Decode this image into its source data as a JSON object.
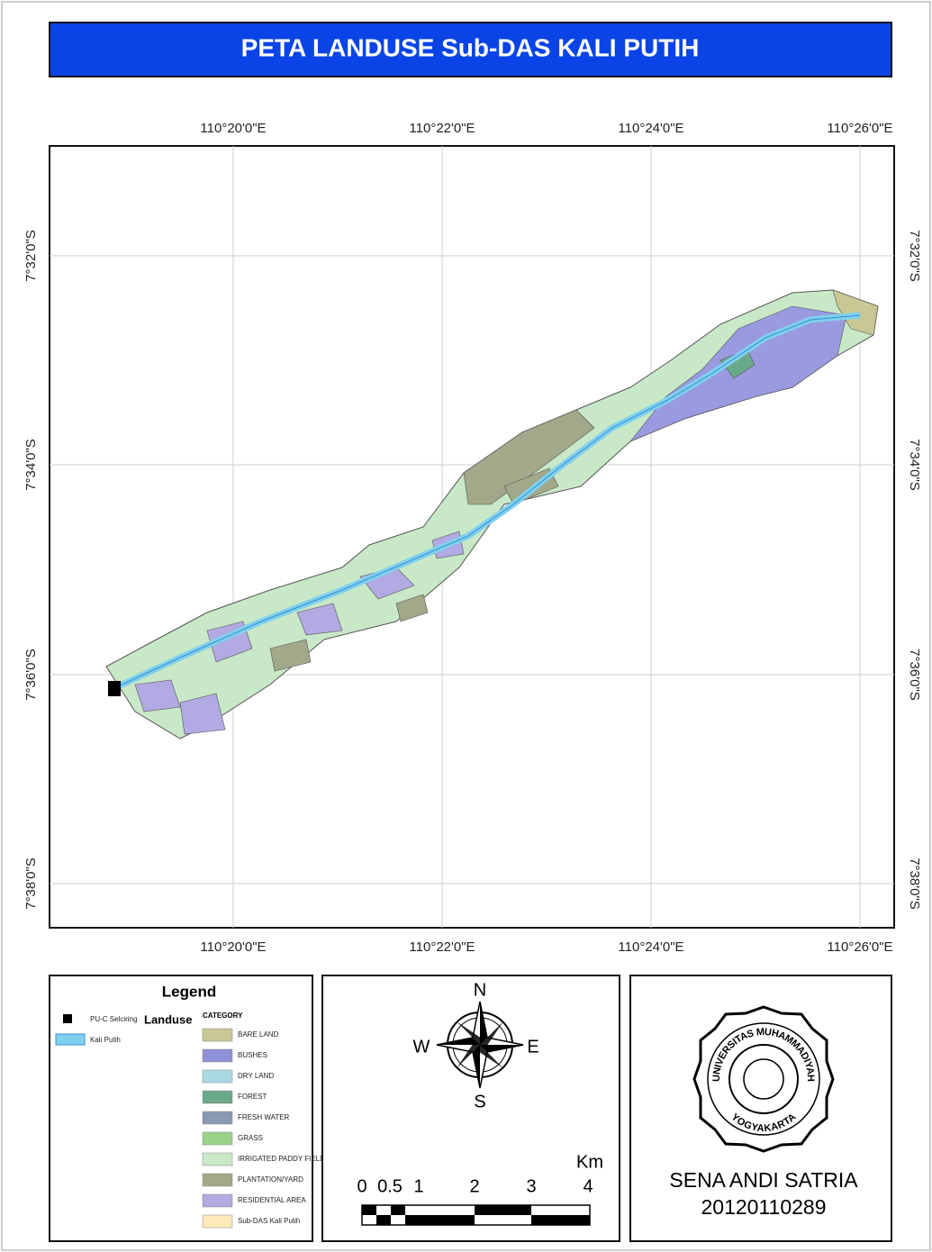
{
  "title": "PETA LANDUSE Sub-DAS KALI PUTIH",
  "graticule": {
    "top": [
      "110°20'0\"E",
      "110°22'0\"E",
      "110°24'0\"E",
      "110°26'0\"E"
    ],
    "bottom": [
      "110°20'0\"E",
      "110°22'0\"E",
      "110°24'0\"E",
      "110°26'0\"E"
    ],
    "left": [
      "7°32'0\"S",
      "7°34'0\"S",
      "7°36'0\"S",
      "7°38'0\"S"
    ],
    "right": [
      "7°32'0\"S",
      "7°34'0\"S",
      "7°36'0\"S",
      "7°38'0\"S"
    ]
  },
  "legend": {
    "title": "Legend",
    "point_label": "PU-C Selciring",
    "river_label": "Kali Putih",
    "landuse_title": "Landuse",
    "category_header": "CATEGORY",
    "categories": [
      {
        "label": "BARE LAND",
        "color": "#c9c894"
      },
      {
        "label": "BUSHES",
        "color": "#9090d8"
      },
      {
        "label": "DRY LAND",
        "color": "#a9d9e2"
      },
      {
        "label": "FOREST",
        "color": "#6aa88a"
      },
      {
        "label": "FRESH WATER",
        "color": "#8a9ab2"
      },
      {
        "label": "GRASS",
        "color": "#9ad28a"
      },
      {
        "label": "IRRIGATED PADDY FIELD",
        "color": "#c8e8c8"
      },
      {
        "label": "PLANTATION/YARD",
        "color": "#a2a88a"
      },
      {
        "label": "RESIDENTIAL AREA",
        "color": "#b2aae2"
      },
      {
        "label": "Sub-DAS Kali Putih",
        "color": "#fde9b9"
      }
    ]
  },
  "compass": {
    "n": "N",
    "s": "S",
    "e": "E",
    "w": "W"
  },
  "scale_bar": {
    "unit": "Km",
    "labels": [
      "0",
      "0.5",
      "1",
      "2",
      "3",
      "4"
    ]
  },
  "logo": {
    "top": "UNIVERSITAS MUHAMMADIYAH",
    "bottom": "YOGYAKARTA"
  },
  "author": {
    "name": "SENA ANDI SATRIA",
    "id": "20120110289"
  }
}
